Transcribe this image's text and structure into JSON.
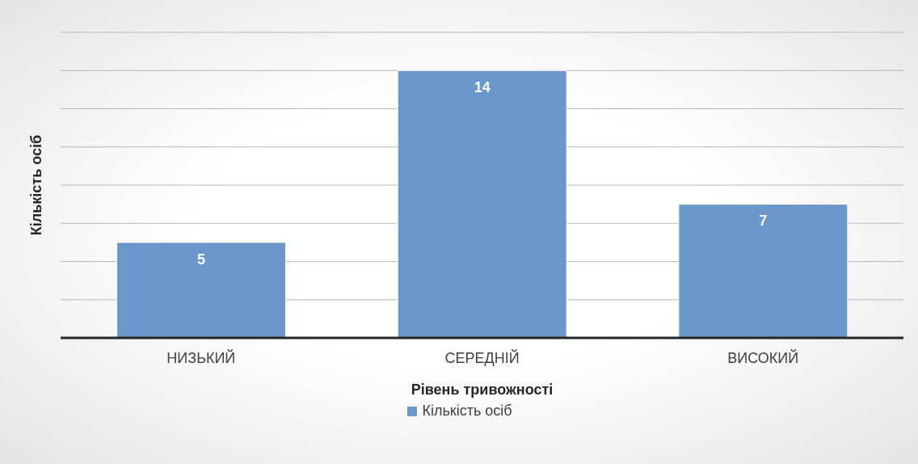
{
  "chart_data": {
    "type": "bar",
    "xlabel": "Рівень тривожності",
    "ylabel": "Кількість осіб",
    "categories": [
      "НИЗЬКИЙ",
      "СЕРЕДНІЙ",
      "ВИСОКИЙ"
    ],
    "series": [
      {
        "name": "Кількість осіб",
        "color": "#6a98cb",
        "values": [
          5,
          14,
          7
        ]
      }
    ],
    "ylim": [
      0,
      16
    ],
    "tick_labels": "x",
    "grid": "y",
    "data_labels": true,
    "legend": "bottom"
  }
}
